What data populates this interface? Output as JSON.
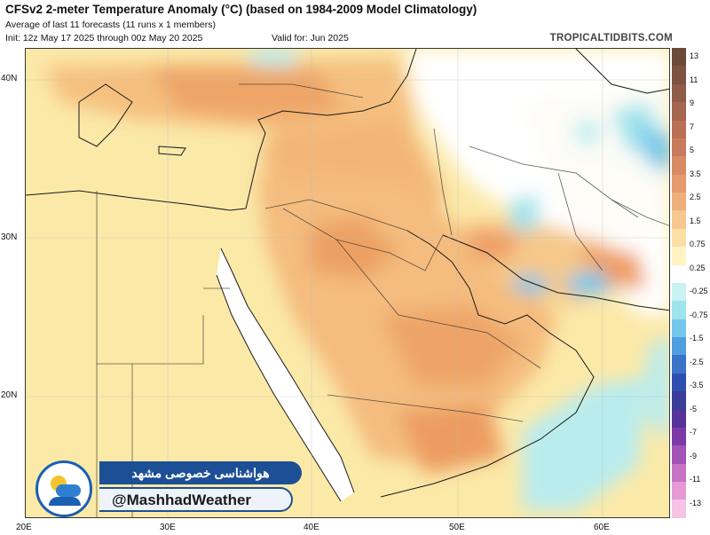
{
  "header": {
    "title": "CFSv2 2-meter Temperature Anomaly (°C) (based on 1984-2009 Model Climatology)",
    "subtitle": "Average of last 11 forecasts (11 runs x 1 members)",
    "init": "Init: 12z May 17 2025 through 00z May 20 2025",
    "valid": "Valid for: Jun 2025",
    "site": "TROPICALTIDBITS.COM"
  },
  "map": {
    "lat_labels": [
      "40N",
      "30N",
      "20N"
    ],
    "lon_labels": [
      "20E",
      "30E",
      "40E",
      "50E",
      "60E"
    ],
    "colors": {
      "land_warm1": "#fbe9a8",
      "land_warm2": "#f7c98a",
      "land_warm3": "#f0a868",
      "sea_red": "#ffffff",
      "cool1": "#b9ecef",
      "cool2": "#7fd4e6",
      "cool3": "#57b6e0"
    }
  },
  "colorbar": {
    "labels": [
      "13",
      "11",
      "9",
      "7",
      "5",
      "3.5",
      "2.5",
      "1.5",
      "0.75",
      "0.25",
      "-0.25",
      "-0.75",
      "-1.5",
      "-2.5",
      "-3.5",
      "-5",
      "-7",
      "-9",
      "-11",
      "-13"
    ],
    "colors": [
      "#6b4a3a",
      "#7d5240",
      "#8f5c48",
      "#a4664e",
      "#b97054",
      "#c97a5c",
      "#d98a62",
      "#e49a6c",
      "#eeb07a",
      "#f6c78e",
      "#fbdfa4",
      "#fff3c4",
      "#ffffff",
      "#c9f2f2",
      "#9fe3ec",
      "#74c7ea",
      "#4f9fe0",
      "#3a73c8",
      "#2f4fb0",
      "#3a3d9a",
      "#55339a",
      "#7b3aa6",
      "#a353b6",
      "#c872c6",
      "#e59ad6",
      "#f5c3e4"
    ]
  },
  "banner": {
    "persian": "هواشناسی خصوصی مشهد",
    "handle": "@MashhadWeather"
  }
}
